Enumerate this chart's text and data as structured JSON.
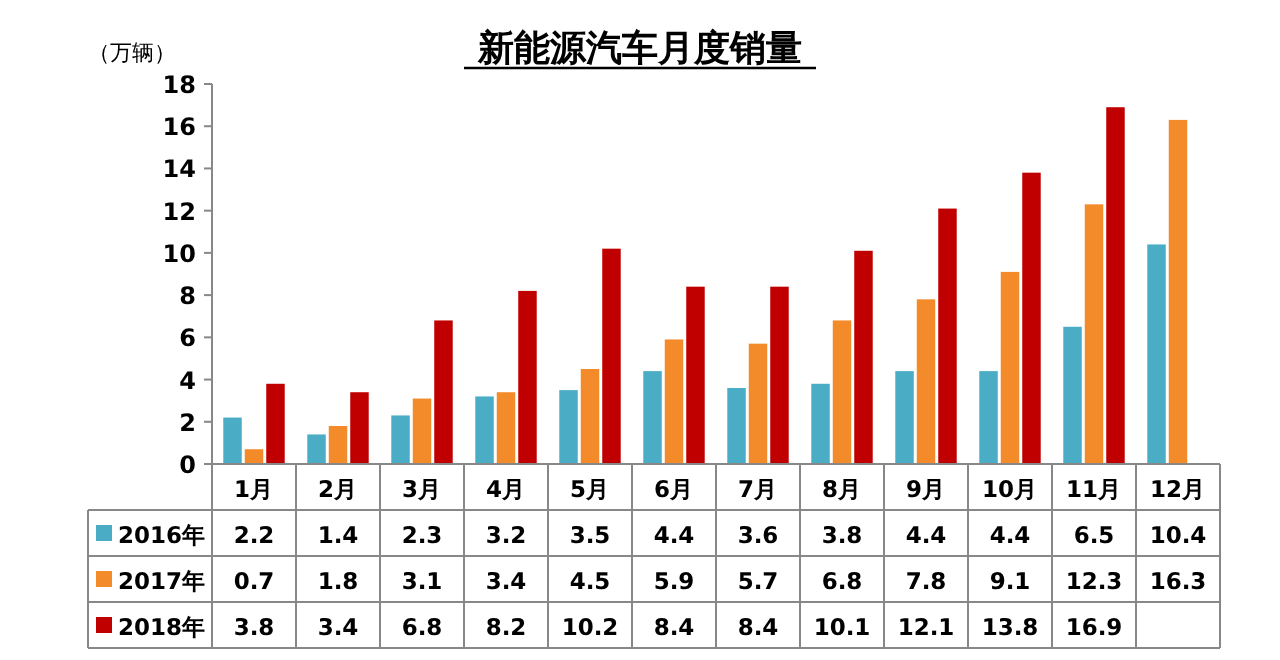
{
  "chart_data": {
    "type": "bar",
    "title": "新能源汽车月度销量",
    "ylabel": "（万辆）",
    "categories": [
      "1月",
      "2月",
      "3月",
      "4月",
      "5月",
      "6月",
      "7月",
      "8月",
      "9月",
      "10月",
      "11月",
      "12月"
    ],
    "series": [
      {
        "name": "2016年",
        "color": "#4bacc6",
        "values": [
          2.2,
          1.4,
          2.3,
          3.2,
          3.5,
          4.4,
          3.6,
          3.8,
          4.4,
          4.4,
          6.5,
          10.4
        ]
      },
      {
        "name": "2017年",
        "color": "#f38b2a",
        "values": [
          0.7,
          1.8,
          3.1,
          3.4,
          4.5,
          5.9,
          5.7,
          6.8,
          7.8,
          9.1,
          12.3,
          16.3
        ]
      },
      {
        "name": "2018年",
        "color": "#c00000",
        "values": [
          3.8,
          3.4,
          6.8,
          8.2,
          10.2,
          8.4,
          8.4,
          10.1,
          12.1,
          13.8,
          16.9,
          null
        ]
      }
    ],
    "ylim": [
      0,
      18
    ],
    "yticks": [
      0,
      2,
      4,
      6,
      8,
      10,
      12,
      14,
      16,
      18
    ],
    "grid": false,
    "legend": "bottom",
    "data_labels": true
  }
}
